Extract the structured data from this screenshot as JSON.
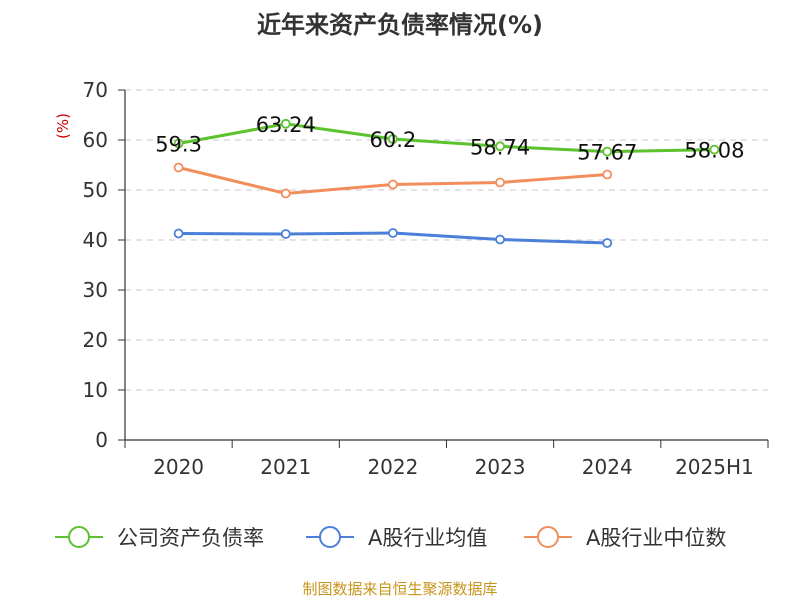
{
  "chart_data": {
    "type": "line",
    "title": "近年来资产负债率情况(%)",
    "unit_label": "(%)",
    "categories": [
      "2020",
      "2021",
      "2022",
      "2023",
      "2024",
      "2025H1"
    ],
    "ylim": [
      0,
      70
    ],
    "yticks": [
      0,
      10,
      20,
      30,
      40,
      50,
      60,
      70
    ],
    "grid": true,
    "legend_position": "bottom",
    "series": [
      {
        "name": "公司资产负债率",
        "color": "#5cc22e",
        "values": [
          59.3,
          63.24,
          60.2,
          58.74,
          57.67,
          58.08
        ],
        "labels": [
          "59.3",
          "63.24",
          "60.2",
          "58.74",
          "57.67",
          "58.08"
        ]
      },
      {
        "name": "A股行业均值",
        "color": "#4c7fd7",
        "values": [
          41.3,
          41.2,
          41.4,
          40.1,
          39.4,
          null
        ]
      },
      {
        "name": "A股行业中位数",
        "color": "#f28e5c",
        "values": [
          54.5,
          49.3,
          51.1,
          51.5,
          53.1,
          null
        ]
      }
    ],
    "source": "制图数据来自恒生聚源数据库"
  }
}
